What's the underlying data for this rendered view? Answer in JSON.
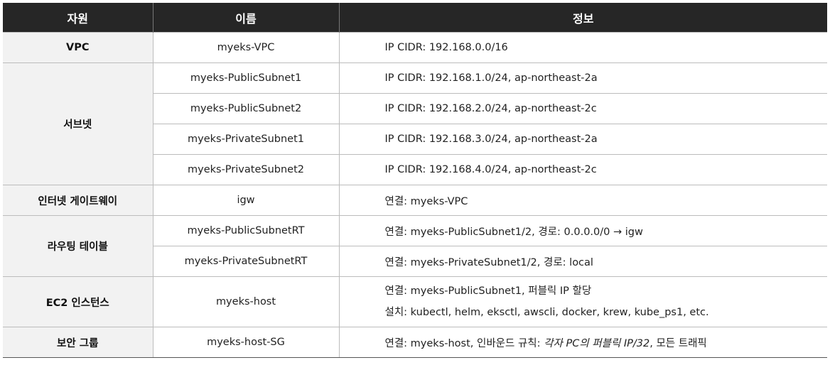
{
  "headers": {
    "resource": "자원",
    "name": "이름",
    "info": "정보"
  },
  "rows": [
    {
      "resource": "VPC",
      "name": "myeks-VPC",
      "info": "IP CIDR: 192.168.0.0/16"
    },
    {
      "resource": "서브넷",
      "name": "myeks-PublicSubnet1",
      "info": "IP CIDR: 192.168.1.0/24, ap-northeast-2a"
    },
    {
      "name": "myeks-PublicSubnet2",
      "info": "IP CIDR: 192.168.2.0/24, ap-northeast-2c"
    },
    {
      "name": "myeks-PrivateSubnet1",
      "info": "IP CIDR: 192.168.3.0/24, ap-northeast-2a"
    },
    {
      "name": "myeks-PrivateSubnet2",
      "info": "IP CIDR: 192.168.4.0/24, ap-northeast-2c"
    },
    {
      "resource": "인터넷 게이트웨이",
      "name": "igw",
      "info": "연결: myeks-VPC"
    },
    {
      "resource": "라우팅 테이블",
      "name": "myeks-PublicSubnetRT",
      "info": "연결: myeks-PublicSubnet1/2, 경로: 0.0.0.0/0 → igw"
    },
    {
      "name": "myeks-PrivateSubnetRT",
      "info": "연결: myeks-PrivateSubnet1/2, 경로: local"
    },
    {
      "resource": "EC2 인스턴스",
      "name": "myeks-host",
      "info_lines": [
        "연결: myeks-PublicSubnet1, 퍼블릭 IP 할당",
        "설치: kubectl, helm, eksctl, awscli, docker, krew, kube_ps1, etc."
      ]
    },
    {
      "resource": "보안 그룹",
      "name": "myeks-host-SG",
      "info_parts": {
        "prefix": "연결: myeks-host, 인바운드 규칙: ",
        "emphasis": "각자 PC의 퍼블릭 IP/32",
        "suffix": ", 모든 트래픽"
      }
    }
  ]
}
